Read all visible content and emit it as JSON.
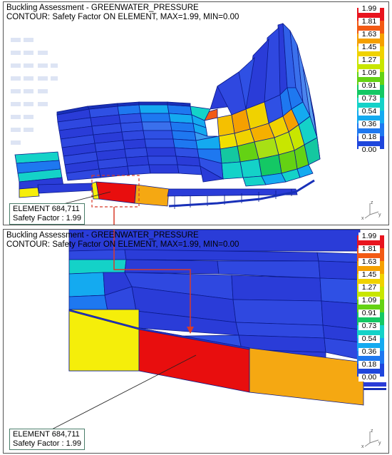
{
  "top_panel": {
    "title_line1": "Buckling Assessment - GREENWATER_PRESSURE",
    "title_line2": "CONTOUR: Safety Factor ON ELEMENT, MAX=1.99, MIN=0.00",
    "callout_line1": "ELEMENT 684,711",
    "callout_line2": "Safety Factor : 1.99"
  },
  "bottom_panel": {
    "title_line1": "Buckling Assessment - GREENWATER_PRESSURE",
    "title_line2": "CONTOUR: Safety Factor ON ELEMENT, MAX=1.99, MIN=0.00",
    "callout_line1": "ELEMENT 684,711",
    "callout_line2": "Safety Factor : 1.99"
  },
  "legend": {
    "labels": [
      "1.99",
      "1.81",
      "1.63",
      "1.45",
      "1.27",
      "1.09",
      "0.91",
      "0.73",
      "0.54",
      "0.36",
      "0.18",
      "0.00"
    ],
    "colors": [
      "#e8141e",
      "#f25a14",
      "#f5a000",
      "#f0d200",
      "#c8e600",
      "#64d214",
      "#14c864",
      "#14d2c8",
      "#14aaf0",
      "#1e78f0",
      "#1e46dc",
      "#2828c8"
    ]
  },
  "axis_labels": {
    "x": "x",
    "y": "y",
    "z": "z"
  },
  "colors": {
    "deep_blue": "#2a3cd8",
    "navy": "#1830b8",
    "selected_element": "#e80e0e",
    "adjacent_yellow": "#f5ee0a",
    "adjacent_orange": "#f5a812",
    "callout_border": "#4a7d6a",
    "zoom_link": "#d83a2a"
  }
}
